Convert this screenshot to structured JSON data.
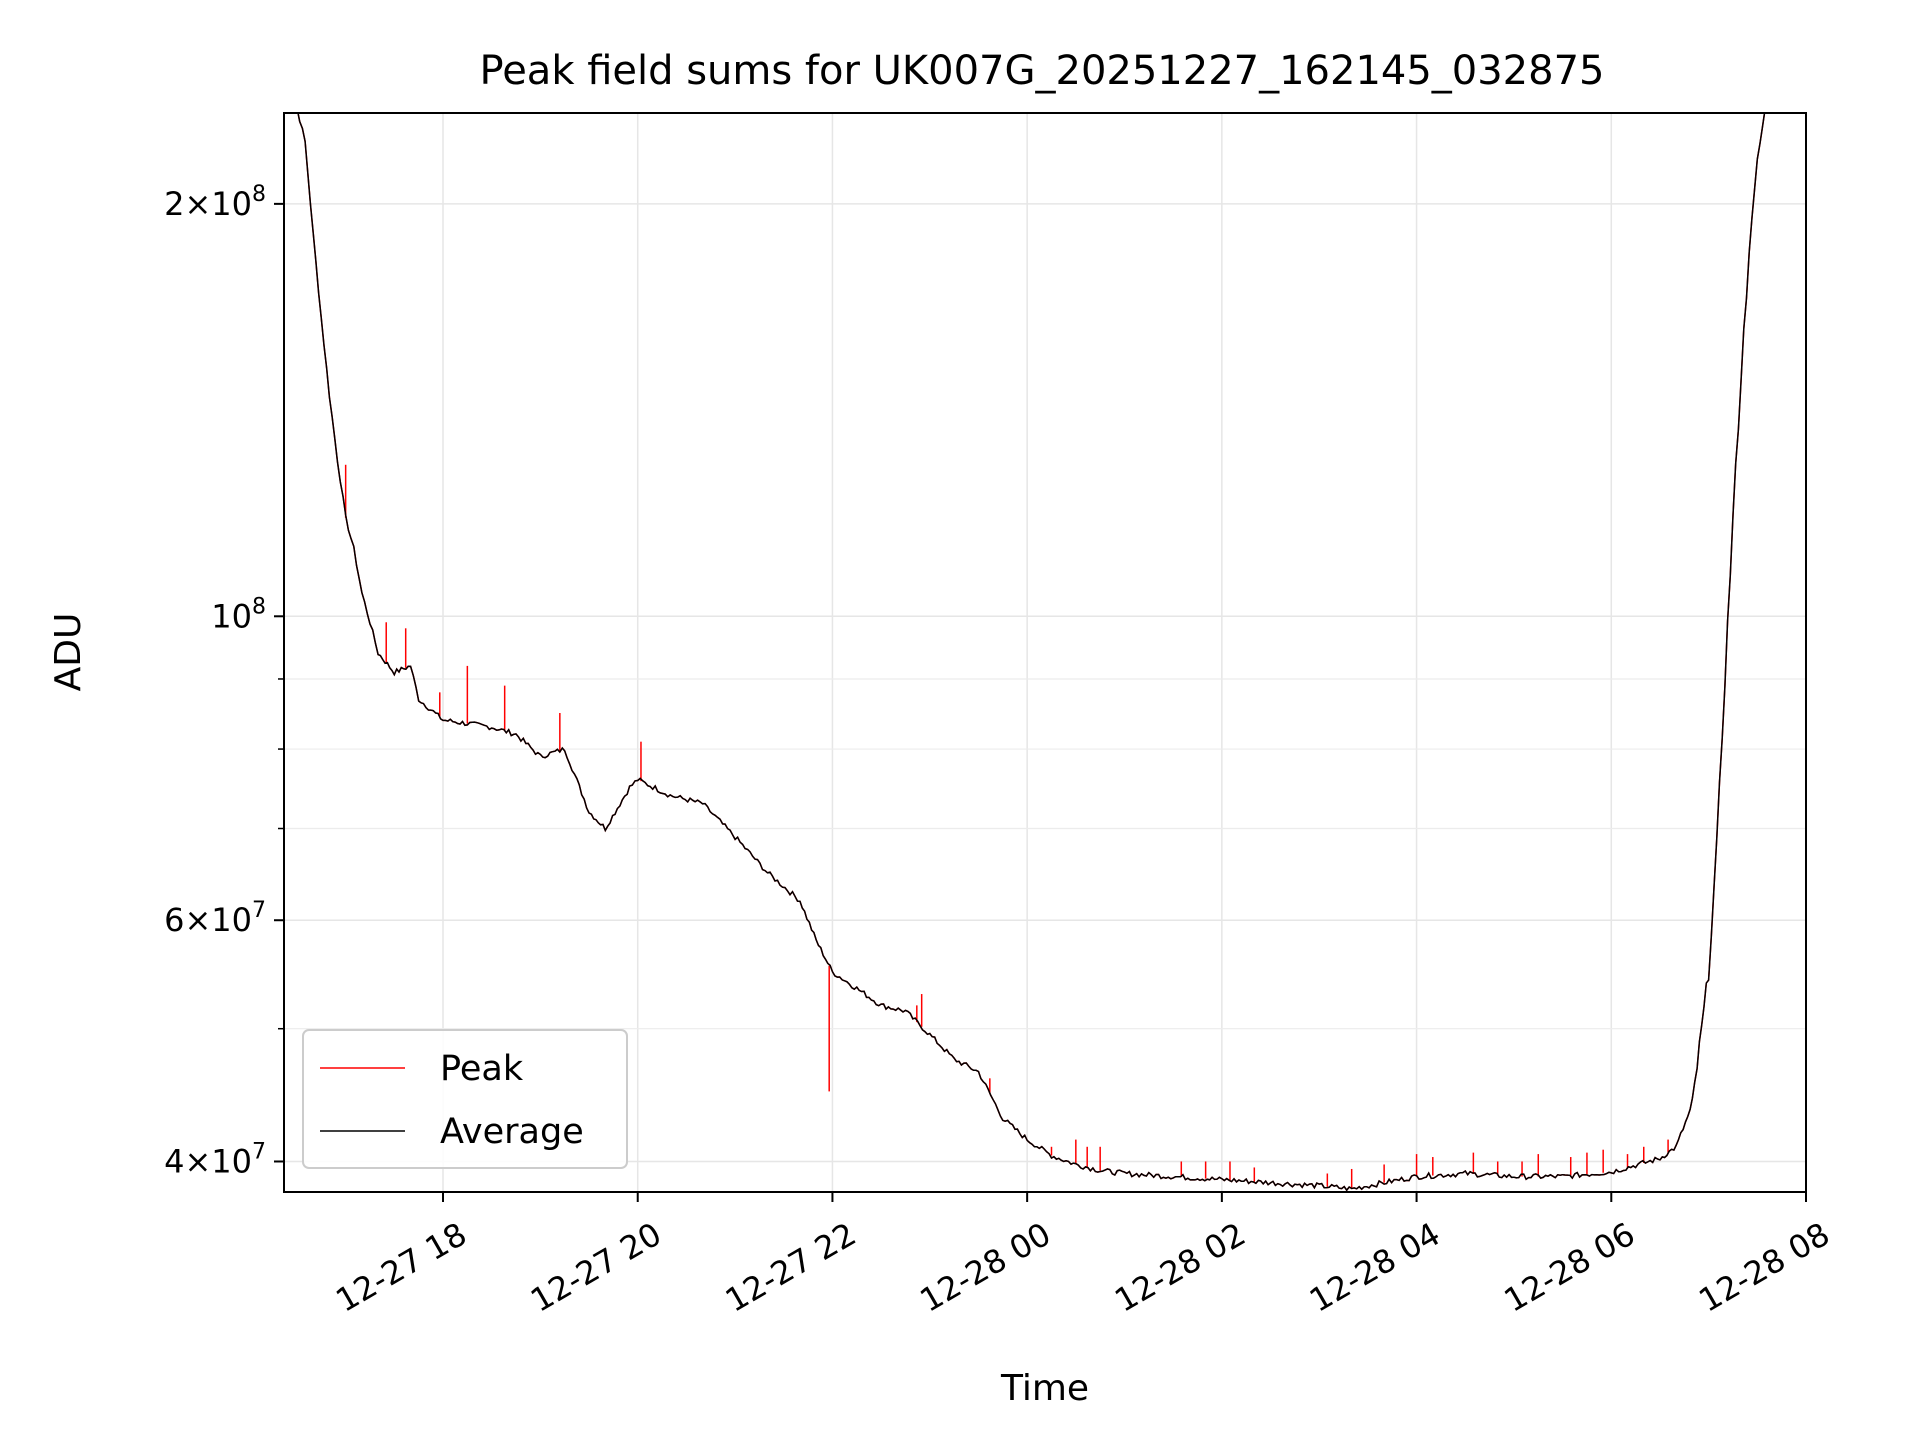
{
  "chart_data": {
    "type": "line",
    "title": "Peak field sums for UK007G_20251227_162145_032875",
    "xlabel": "Time",
    "ylabel": "ADU",
    "x_range": [
      "2025-12-27 16:22",
      "2025-12-28 08:00"
    ],
    "ylim": [
      38000000,
      233000000
    ],
    "y_scale": "log",
    "grid": true,
    "legend_position": "lower-left",
    "x_ticks": [
      {
        "t": "2025-12-27 18:00",
        "label": "12-27 18"
      },
      {
        "t": "2025-12-27 20:00",
        "label": "12-27 20"
      },
      {
        "t": "2025-12-27 22:00",
        "label": "12-27 22"
      },
      {
        "t": "2025-12-28 00:00",
        "label": "12-28 00"
      },
      {
        "t": "2025-12-28 02:00",
        "label": "12-28 02"
      },
      {
        "t": "2025-12-28 04:00",
        "label": "12-28 04"
      },
      {
        "t": "2025-12-28 06:00",
        "label": "12-28 06"
      },
      {
        "t": "2025-12-28 08:00",
        "label": "12-28 08"
      }
    ],
    "y_major_ticks": [
      {
        "value": 40000000,
        "mantissa": "4",
        "exponent": "7"
      },
      {
        "value": 60000000,
        "mantissa": "6",
        "exponent": "7"
      },
      {
        "value": 100000000,
        "mantissa": "",
        "exponent": "8"
      },
      {
        "value": 200000000,
        "mantissa": "2",
        "exponent": "8"
      }
    ],
    "y_minor_ticks": [
      50000000,
      70000000,
      80000000,
      90000000
    ],
    "series": [
      {
        "name": "Peak",
        "color": "#ff0000",
        "spikes": [
          [
            "2025-12-27 17:00",
            129000000
          ],
          [
            "2025-12-27 17:25",
            99000000
          ],
          [
            "2025-12-27 17:37",
            98000000
          ],
          [
            "2025-12-27 17:58",
            88000000
          ],
          [
            "2025-12-27 18:15",
            92000000
          ],
          [
            "2025-12-27 18:38",
            89000000
          ],
          [
            "2025-12-27 19:12",
            85000000
          ],
          [
            "2025-12-27 20:02",
            81000000
          ],
          [
            "2025-12-27 21:58",
            45000000
          ],
          [
            "2025-12-27 22:52",
            52000000
          ],
          [
            "2025-12-27 22:55",
            53000000
          ],
          [
            "2025-12-27 23:37",
            46000000
          ],
          [
            "2025-12-28 00:15",
            41000000
          ],
          [
            "2025-12-28 00:30",
            41500000
          ],
          [
            "2025-12-28 00:37",
            41000000
          ],
          [
            "2025-12-28 00:45",
            41000000
          ],
          [
            "2025-12-28 01:35",
            40000000
          ],
          [
            "2025-12-28 01:50",
            40000000
          ],
          [
            "2025-12-28 02:05",
            40000000
          ],
          [
            "2025-12-28 02:20",
            39600000
          ],
          [
            "2025-12-28 03:05",
            39200000
          ],
          [
            "2025-12-28 03:20",
            39500000
          ],
          [
            "2025-12-28 03:40",
            39800000
          ],
          [
            "2025-12-28 04:00",
            40500000
          ],
          [
            "2025-12-28 04:10",
            40300000
          ],
          [
            "2025-12-28 04:35",
            40600000
          ],
          [
            "2025-12-28 04:50",
            40000000
          ],
          [
            "2025-12-28 05:05",
            40000000
          ],
          [
            "2025-12-28 05:15",
            40500000
          ],
          [
            "2025-12-28 05:35",
            40300000
          ],
          [
            "2025-12-28 05:45",
            40600000
          ],
          [
            "2025-12-28 05:55",
            40800000
          ],
          [
            "2025-12-28 06:10",
            40500000
          ],
          [
            "2025-12-28 06:20",
            41000000
          ],
          [
            "2025-12-28 06:35",
            41500000
          ]
        ]
      },
      {
        "name": "Average",
        "color": "#000000",
        "points": [
          [
            "2025-12-27 16:22",
            235000000
          ],
          [
            "2025-12-27 16:30",
            235000000
          ],
          [
            "2025-12-27 16:35",
            222000000
          ],
          [
            "2025-12-27 16:40",
            190000000
          ],
          [
            "2025-12-27 16:45",
            165000000
          ],
          [
            "2025-12-27 16:50",
            145000000
          ],
          [
            "2025-12-27 16:55",
            130000000
          ],
          [
            "2025-12-27 17:00",
            118000000
          ],
          [
            "2025-12-27 17:05",
            112000000
          ],
          [
            "2025-12-27 17:10",
            104000000
          ],
          [
            "2025-12-27 17:15",
            99000000
          ],
          [
            "2025-12-27 17:20",
            94000000
          ],
          [
            "2025-12-27 17:30",
            91000000
          ],
          [
            "2025-12-27 17:40",
            92000000
          ],
          [
            "2025-12-27 17:45",
            87000000
          ],
          [
            "2025-12-27 18:00",
            84000000
          ],
          [
            "2025-12-27 18:30",
            83000000
          ],
          [
            "2025-12-27 18:45",
            82000000
          ],
          [
            "2025-12-27 19:00",
            79000000
          ],
          [
            "2025-12-27 19:15",
            80000000
          ],
          [
            "2025-12-27 19:30",
            72000000
          ],
          [
            "2025-12-27 19:40",
            70000000
          ],
          [
            "2025-12-27 19:55",
            75000000
          ],
          [
            "2025-12-27 20:00",
            76000000
          ],
          [
            "2025-12-27 20:20",
            74000000
          ],
          [
            "2025-12-27 20:40",
            73000000
          ],
          [
            "2025-12-27 21:00",
            69000000
          ],
          [
            "2025-12-27 21:20",
            65000000
          ],
          [
            "2025-12-27 21:40",
            62000000
          ],
          [
            "2025-12-27 21:50",
            58000000
          ],
          [
            "2025-12-27 22:00",
            55000000
          ],
          [
            "2025-12-27 22:15",
            53500000
          ],
          [
            "2025-12-27 22:30",
            52000000
          ],
          [
            "2025-12-27 22:45",
            51500000
          ],
          [
            "2025-12-27 23:00",
            49500000
          ],
          [
            "2025-12-27 23:15",
            47500000
          ],
          [
            "2025-12-27 23:30",
            46500000
          ],
          [
            "2025-12-27 23:45",
            43000000
          ],
          [
            "2025-12-28 00:00",
            41500000
          ],
          [
            "2025-12-28 00:15",
            40400000
          ],
          [
            "2025-12-28 00:30",
            39800000
          ],
          [
            "2025-12-28 00:45",
            39400000
          ],
          [
            "2025-12-28 01:00",
            39200000
          ],
          [
            "2025-12-28 01:30",
            39000000
          ],
          [
            "2025-12-28 02:00",
            38800000
          ],
          [
            "2025-12-28 02:30",
            38600000
          ],
          [
            "2025-12-28 03:00",
            38400000
          ],
          [
            "2025-12-28 03:20",
            38200000
          ],
          [
            "2025-12-28 03:40",
            38600000
          ],
          [
            "2025-12-28 04:00",
            39000000
          ],
          [
            "2025-12-28 04:30",
            39200000
          ],
          [
            "2025-12-28 05:00",
            39000000
          ],
          [
            "2025-12-28 05:30",
            39000000
          ],
          [
            "2025-12-28 06:00",
            39300000
          ],
          [
            "2025-12-28 06:30",
            40200000
          ],
          [
            "2025-12-28 06:40",
            41000000
          ],
          [
            "2025-12-28 06:50",
            44000000
          ],
          [
            "2025-12-28 07:00",
            55000000
          ],
          [
            "2025-12-28 07:05",
            68000000
          ],
          [
            "2025-12-28 07:10",
            90000000
          ],
          [
            "2025-12-28 07:15",
            118000000
          ],
          [
            "2025-12-28 07:20",
            150000000
          ],
          [
            "2025-12-28 07:25",
            185000000
          ],
          [
            "2025-12-28 07:30",
            215000000
          ],
          [
            "2025-12-28 07:35",
            235000000
          ],
          [
            "2025-12-28 08:00",
            235000000
          ]
        ]
      }
    ]
  }
}
